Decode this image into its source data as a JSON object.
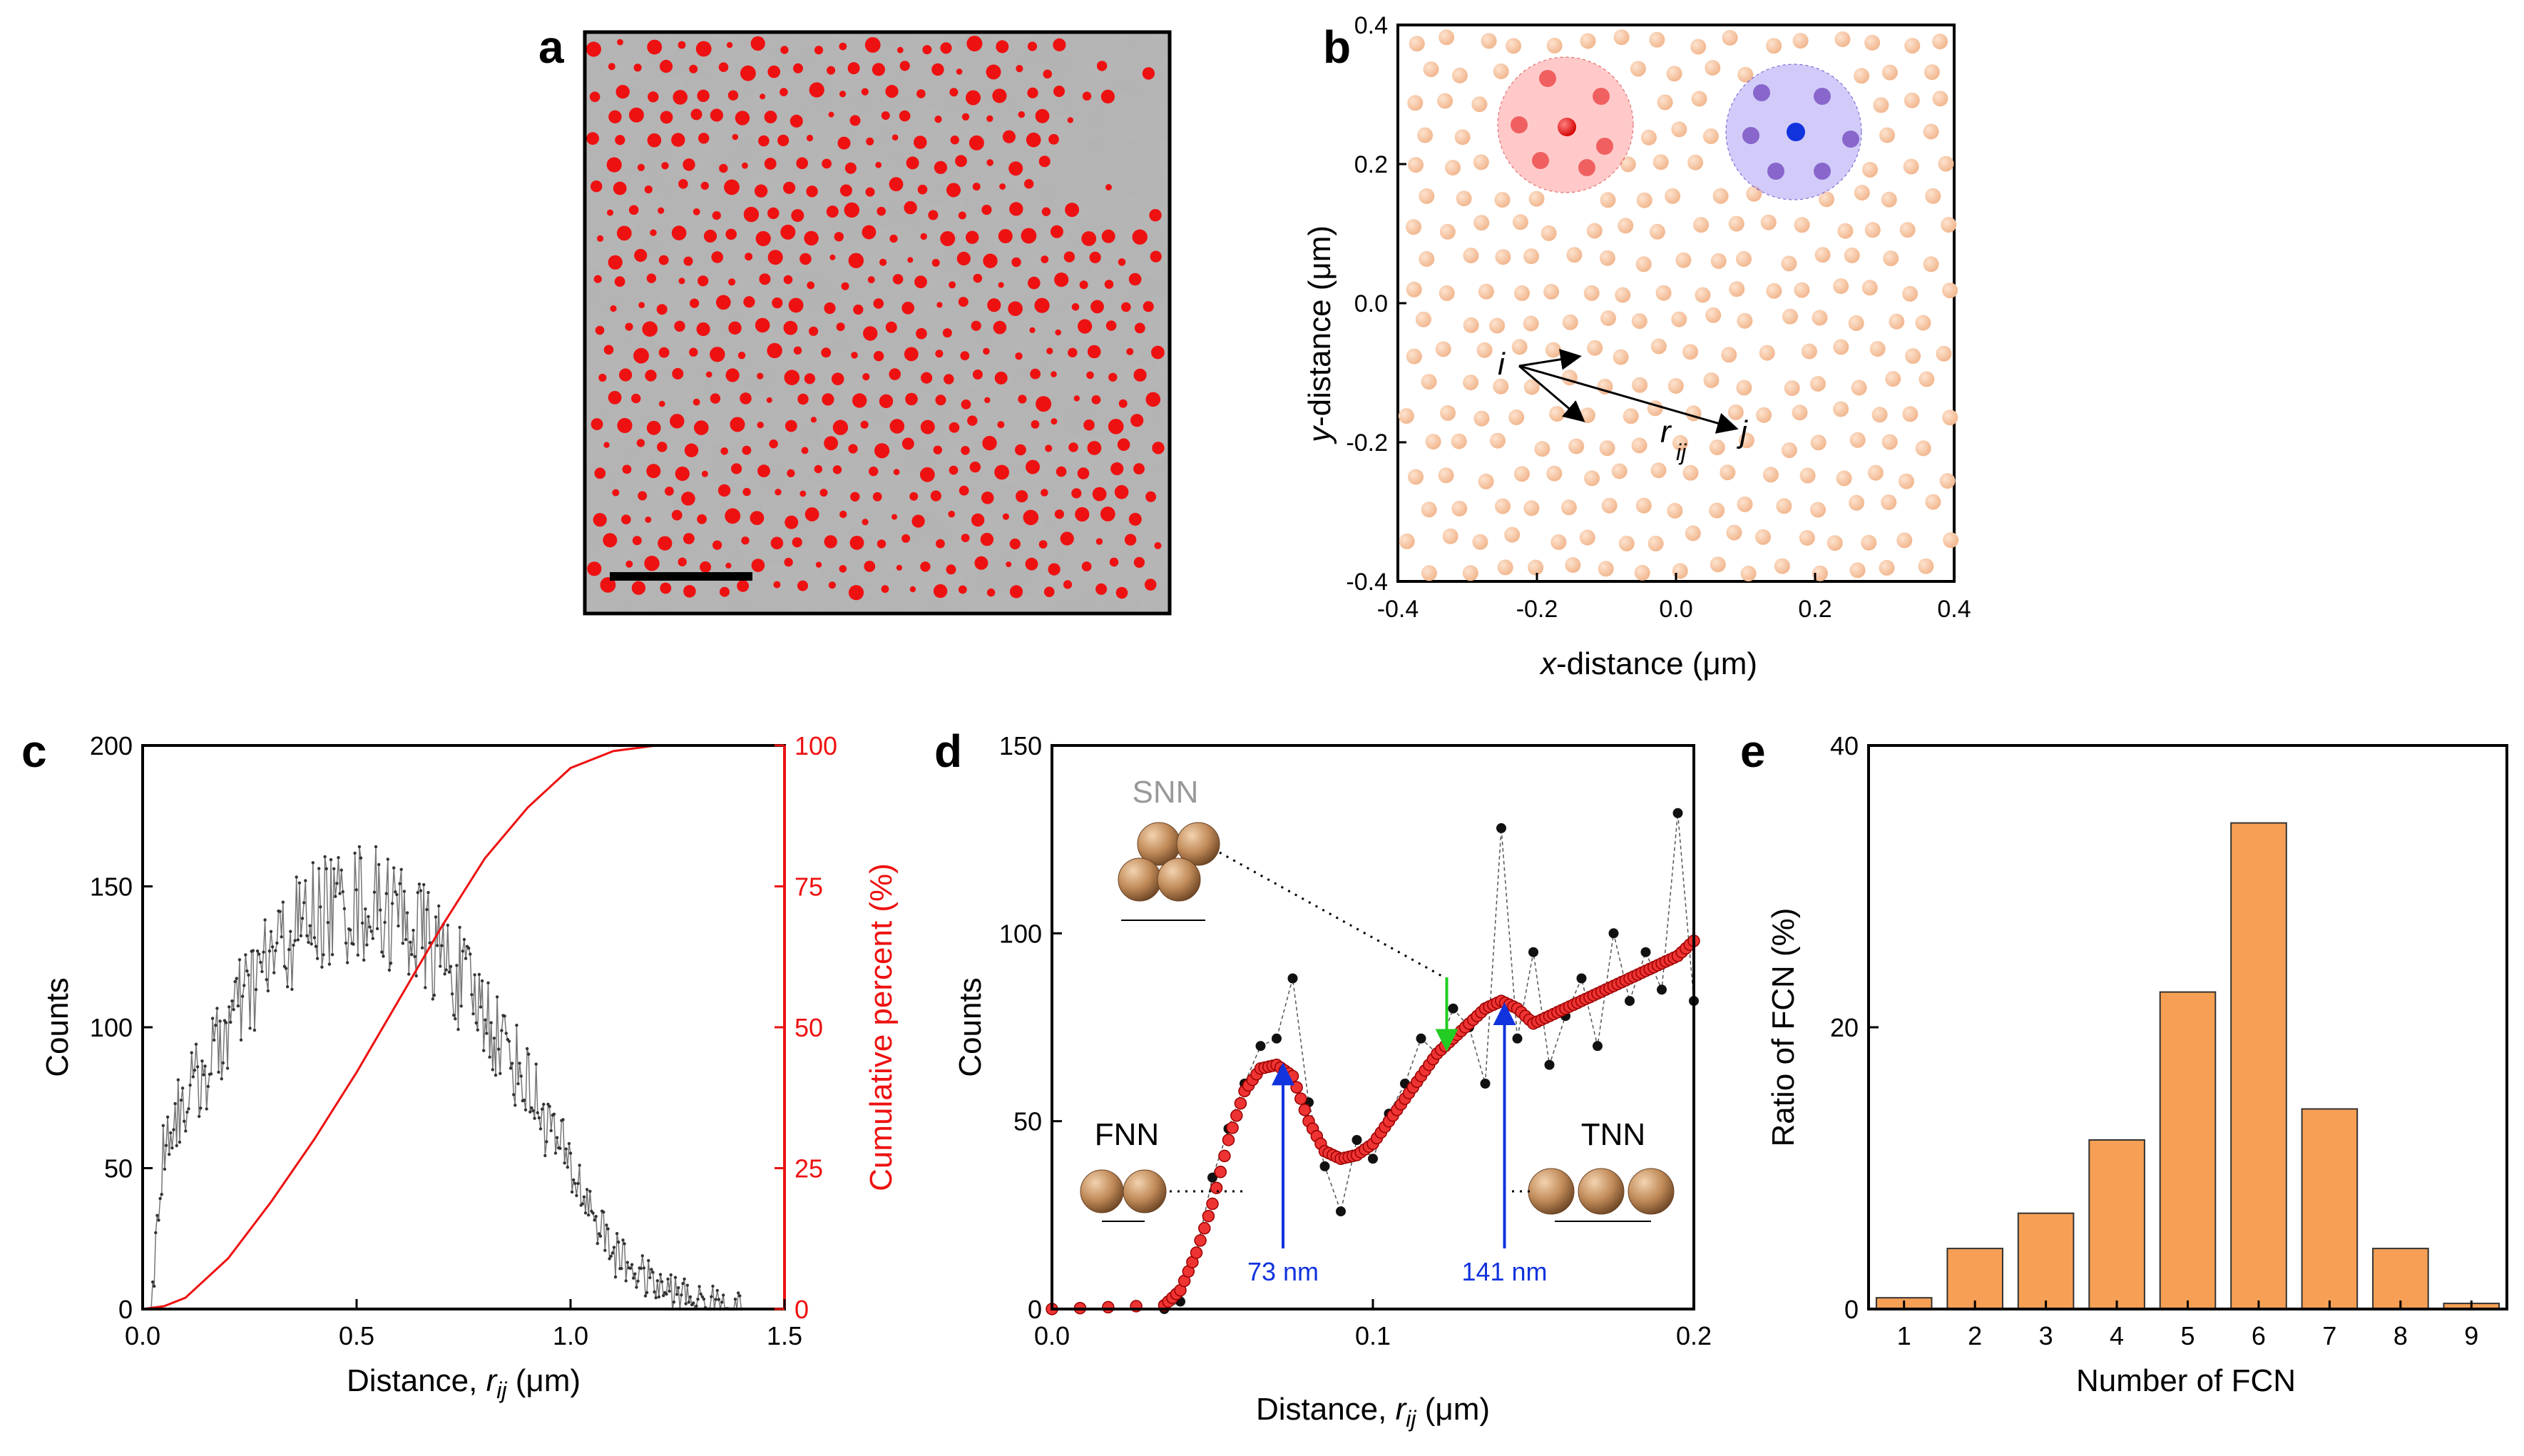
{
  "colors": {
    "red": "#ee1111",
    "blue": "#1133dd",
    "green": "#22cc22",
    "gray": "#999999",
    "bar": "#f7a055",
    "salmon": "#f7c4a2",
    "violet": "#8866cc",
    "bronze": "#b07a4a"
  },
  "panel_a": {
    "letter": "a",
    "description_markers": "red particle centroids on grey micrograph",
    "scale_bar_label": ""
  },
  "panel_b": {
    "letter": "b",
    "xlabel_italic": "x",
    "xlabel_rest": "-distance (μm)",
    "ylabel_italic": "y",
    "ylabel_rest": "-distance (μm)",
    "xticks": [
      "-0.4",
      "-0.2",
      "0.0",
      "0.2",
      "0.4"
    ],
    "yticks": [
      "-0.4",
      "-0.2",
      "0.0",
      "0.2",
      "0.4"
    ],
    "label_i": "i",
    "label_j": "j",
    "label_r": "r",
    "label_ij": "ij"
  },
  "chart_data": [
    {
      "panel": "c",
      "type": "line",
      "title": "",
      "xlabel": "Distance, r_ij (μm)",
      "ylabel": "Counts",
      "y2label": "Cumulative percent (%)",
      "xlim": [
        0,
        1.5
      ],
      "ylim": [
        0,
        200
      ],
      "y2lim": [
        0,
        100
      ],
      "xticks": [
        "0.0",
        "0.5",
        "1.0",
        "1.5"
      ],
      "yticks": [
        "0",
        "50",
        "100",
        "150",
        "200"
      ],
      "y2ticks": [
        "0",
        "25",
        "50",
        "75",
        "100"
      ],
      "series": [
        {
          "name": "Counts (envelope)",
          "x": [
            0.02,
            0.05,
            0.1,
            0.15,
            0.2,
            0.3,
            0.4,
            0.5,
            0.6,
            0.7,
            0.8,
            0.9,
            1.0,
            1.1,
            1.2,
            1.3,
            1.4
          ],
          "y": [
            0,
            60,
            75,
            85,
            100,
            125,
            140,
            145,
            140,
            125,
            105,
            80,
            50,
            20,
            8,
            3,
            0
          ]
        },
        {
          "name": "Cumulative percent",
          "x": [
            0.0,
            0.05,
            0.1,
            0.2,
            0.3,
            0.4,
            0.5,
            0.6,
            0.7,
            0.8,
            0.9,
            1.0,
            1.1,
            1.2,
            1.3
          ],
          "y": [
            0,
            0.5,
            2,
            9,
            19,
            30,
            42,
            55,
            68,
            80,
            89,
            96,
            99,
            100,
            100
          ]
        }
      ]
    },
    {
      "panel": "d",
      "type": "line",
      "title": "",
      "xlabel": "Distance, r_ij (μm)",
      "ylabel": "Counts",
      "xlim": [
        0,
        0.2
      ],
      "ylim": [
        0,
        150
      ],
      "xticks": [
        "0.0",
        "0.1",
        "0.2"
      ],
      "yticks": [
        "0",
        "50",
        "100",
        "150"
      ],
      "series": [
        {
          "name": "Raw counts",
          "x": [
            0.0,
            0.035,
            0.04,
            0.045,
            0.05,
            0.055,
            0.06,
            0.065,
            0.07,
            0.075,
            0.08,
            0.085,
            0.09,
            0.095,
            0.1,
            0.105,
            0.11,
            0.115,
            0.12,
            0.125,
            0.13,
            0.135,
            0.14,
            0.145,
            0.15,
            0.155,
            0.16,
            0.165,
            0.17,
            0.175,
            0.18,
            0.185,
            0.19,
            0.195,
            0.2
          ],
          "y": [
            0,
            0,
            2,
            15,
            35,
            48,
            60,
            70,
            72,
            88,
            55,
            38,
            26,
            45,
            40,
            52,
            60,
            72,
            68,
            80,
            75,
            60,
            128,
            72,
            95,
            65,
            78,
            88,
            70,
            100,
            82,
            95,
            85,
            132,
            82
          ]
        },
        {
          "name": "Smoothed",
          "x": [
            0.0,
            0.035,
            0.04,
            0.045,
            0.05,
            0.055,
            0.06,
            0.065,
            0.07,
            0.075,
            0.08,
            0.085,
            0.09,
            0.095,
            0.1,
            0.105,
            0.11,
            0.115,
            0.12,
            0.125,
            0.13,
            0.135,
            0.14,
            0.145,
            0.15,
            0.155,
            0.16,
            0.165,
            0.17,
            0.175,
            0.18,
            0.185,
            0.19,
            0.195,
            0.2
          ],
          "y": [
            0,
            1,
            5,
            15,
            28,
            45,
            58,
            64,
            65,
            62,
            50,
            42,
            40,
            41,
            44,
            50,
            56,
            62,
            68,
            72,
            76,
            80,
            82,
            80,
            76,
            78,
            80,
            82,
            84,
            86,
            88,
            90,
            92,
            94,
            98
          ]
        }
      ],
      "annotations": [
        {
          "text": "SNN",
          "color": "#999999"
        },
        {
          "text": "FNN",
          "color": "#000000"
        },
        {
          "text": "TNN",
          "color": "#000000"
        },
        {
          "text": "73 nm",
          "color": "#1133dd",
          "x": 0.072
        },
        {
          "text": "141 nm",
          "color": "#1133dd",
          "x": 0.141
        }
      ]
    },
    {
      "panel": "e",
      "type": "bar",
      "title": "",
      "xlabel": "Number of FCN",
      "ylabel": "Ratio of FCN (%)",
      "ylim": [
        0,
        40
      ],
      "yticks": [
        "0",
        "20",
        "40"
      ],
      "categories": [
        "1",
        "2",
        "3",
        "4",
        "5",
        "6",
        "7",
        "8",
        "9"
      ],
      "values": [
        0.8,
        4.3,
        6.8,
        12.0,
        22.5,
        34.5,
        14.2,
        4.3,
        0.4
      ]
    }
  ],
  "letters": {
    "c": "c",
    "d": "d",
    "e": "e"
  }
}
